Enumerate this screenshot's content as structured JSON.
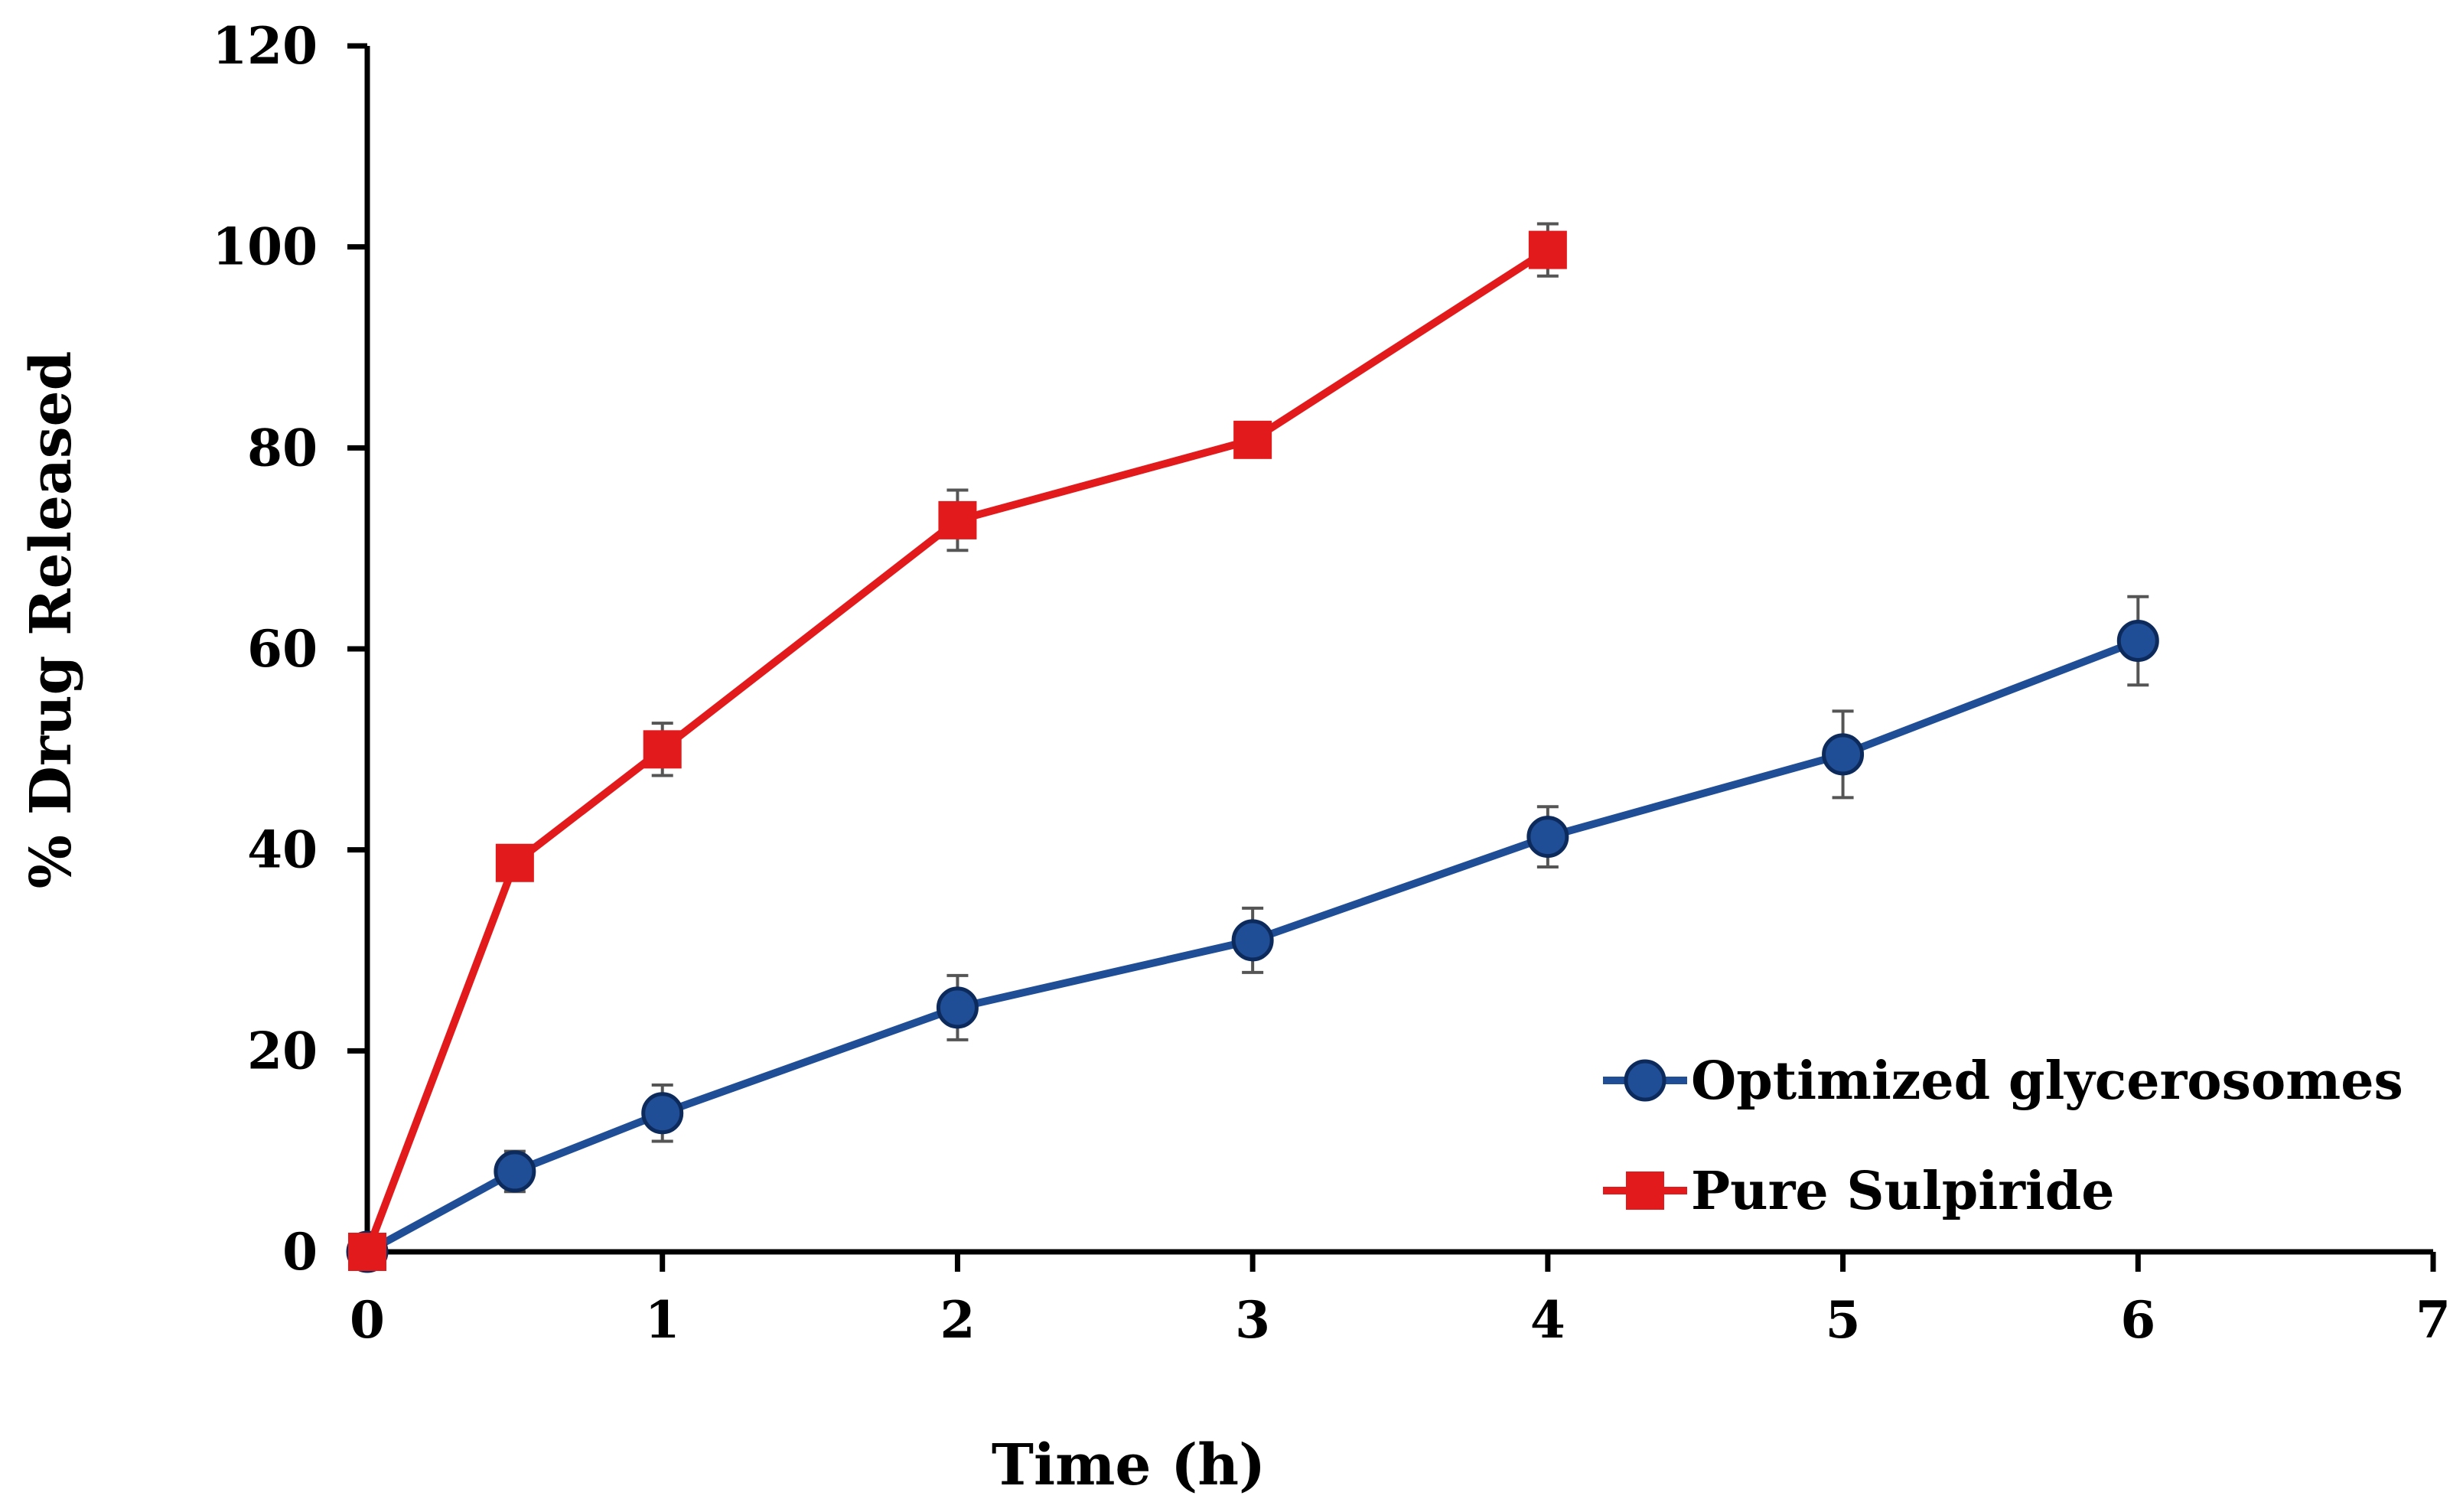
{
  "chart_data": {
    "type": "line",
    "title": "",
    "xlabel": "Time (h)",
    "ylabel": "% Drug Released",
    "xlim": [
      0,
      7
    ],
    "ylim": [
      0,
      120
    ],
    "x_ticks": [
      0,
      1,
      2,
      3,
      4,
      5,
      6,
      7
    ],
    "y_ticks": [
      0,
      20,
      40,
      60,
      80,
      100,
      120
    ],
    "grid": false,
    "legend_position": "bottom-right",
    "series": [
      {
        "name": "Optimized glycerosomes",
        "color": "#1f4e96",
        "marker": "circle",
        "x": [
          0,
          0.5,
          1,
          2,
          3,
          4,
          5,
          6
        ],
        "y": [
          0,
          8,
          13.8,
          24.3,
          31,
          41.3,
          49.5,
          60.8
        ],
        "error": [
          0,
          2,
          2.8,
          3.2,
          3.2,
          3,
          4.3,
          4.4
        ]
      },
      {
        "name": "Pure Sulpiride",
        "color": "#e31a1c",
        "marker": "square",
        "x": [
          0,
          0.5,
          1,
          2,
          3,
          4
        ],
        "y": [
          0,
          38.7,
          50,
          72.8,
          80.8,
          99.7
        ],
        "error": [
          0,
          0,
          2.6,
          3,
          0,
          2.6
        ]
      }
    ]
  }
}
